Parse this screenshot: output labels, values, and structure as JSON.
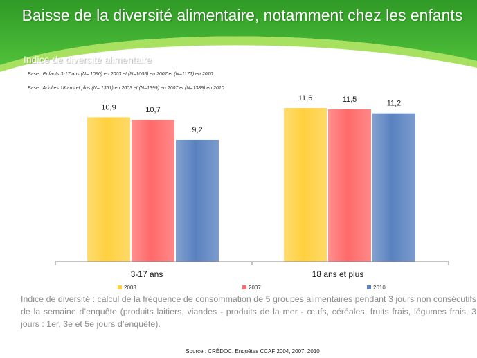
{
  "slide": {
    "title": "Baisse de la diversité alimentaire, notamment chez les enfants",
    "base_children": "Base : Enfants 3-17 ans (N= 1090) en 2003 et (N=1005) en 2007 et (N=1171) en 2010",
    "base_adults": "Base : Adultes 18 ans et plus (N= 1361) en 2003 et (N=1399) en 2007 et (N=1389) en 2010",
    "definition": "Indice de diversité : calcul de la fréquence de consommation de 5 groupes alimentaires pendant 3 jours non consécutifs de la semaine d’enquête (produits laitiers, viandes - produits de la mer - œufs, céréales, fruits frais, légumes frais, 3 jours : 1er, 3e et 5e jours d’enquête).",
    "source": "Source : CRÉDOC, Enquêtes CCAF 2004, 2007, 2010"
  },
  "colors": {
    "header_green": "#3cae2e",
    "header_green_light": "#8fd34c",
    "series_2003": "#ffd040",
    "series_2007": "#ff6a6a",
    "series_2010": "#5a82c0"
  },
  "chart_data": {
    "type": "bar",
    "title": "Indice de diversité alimentaire",
    "categories": [
      "3-17 ans",
      "18 ans et plus"
    ],
    "series": [
      {
        "name": "2003",
        "values": [
          10.9,
          11.6
        ],
        "labels": [
          "10,9",
          "11,6"
        ]
      },
      {
        "name": "2007",
        "values": [
          10.7,
          11.5
        ],
        "labels": [
          "10,7",
          "11,5"
        ]
      },
      {
        "name": "2010",
        "values": [
          9.2,
          11.2
        ],
        "labels": [
          "9,2",
          "11,2"
        ]
      }
    ],
    "ylim": [
      0,
      12.5
    ],
    "xlabel": "",
    "ylabel": "",
    "grid": false,
    "legend_position": "bottom"
  }
}
